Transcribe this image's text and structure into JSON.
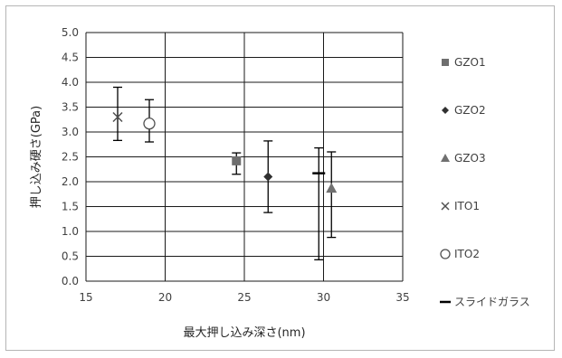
{
  "chart_data": {
    "type": "scatter",
    "title": "",
    "xlabel": "最大押し込み深さ(nm)",
    "ylabel": "押し込み硬さ(GPa)",
    "xlim": [
      15,
      35
    ],
    "ylim": [
      0.0,
      5.0
    ],
    "x_ticks": [
      "15",
      "20",
      "25",
      "30",
      "35"
    ],
    "y_ticks": [
      "0.0",
      "0.5",
      "1.0",
      "1.5",
      "2.0",
      "2.5",
      "3.0",
      "3.5",
      "4.0",
      "4.5",
      "5.0"
    ],
    "grid": "horizontal and vertical",
    "legend_position": "right",
    "series": [
      {
        "name": "GZO1",
        "marker": "square",
        "color": "#6e6e6e",
        "points": [
          {
            "x": 24.5,
            "y": 2.42,
            "y_low": 2.15,
            "y_high": 2.58
          }
        ]
      },
      {
        "name": "GZO2",
        "marker": "diamond",
        "color": "#303030",
        "points": [
          {
            "x": 26.5,
            "y": 2.1,
            "y_low": 1.38,
            "y_high": 2.82
          }
        ]
      },
      {
        "name": "GZO3",
        "marker": "triangle",
        "color": "#707070",
        "points": [
          {
            "x": 30.5,
            "y": 1.87,
            "y_low": 0.88,
            "y_high": 2.6
          }
        ]
      },
      {
        "name": "ITO1",
        "marker": "x",
        "color": "#505050",
        "points": [
          {
            "x": 17.0,
            "y": 3.3,
            "y_low": 2.83,
            "y_high": 3.9
          }
        ]
      },
      {
        "name": "ITO2",
        "marker": "circle",
        "color": "#505050",
        "points": [
          {
            "x": 19.0,
            "y": 3.17,
            "y_low": 2.8,
            "y_high": 3.65
          }
        ]
      },
      {
        "name": "スライドガラス",
        "marker": "dash",
        "color": "#000000",
        "points": [
          {
            "x": 29.7,
            "y": 2.17,
            "y_low": 0.43,
            "y_high": 2.68
          }
        ]
      }
    ]
  }
}
